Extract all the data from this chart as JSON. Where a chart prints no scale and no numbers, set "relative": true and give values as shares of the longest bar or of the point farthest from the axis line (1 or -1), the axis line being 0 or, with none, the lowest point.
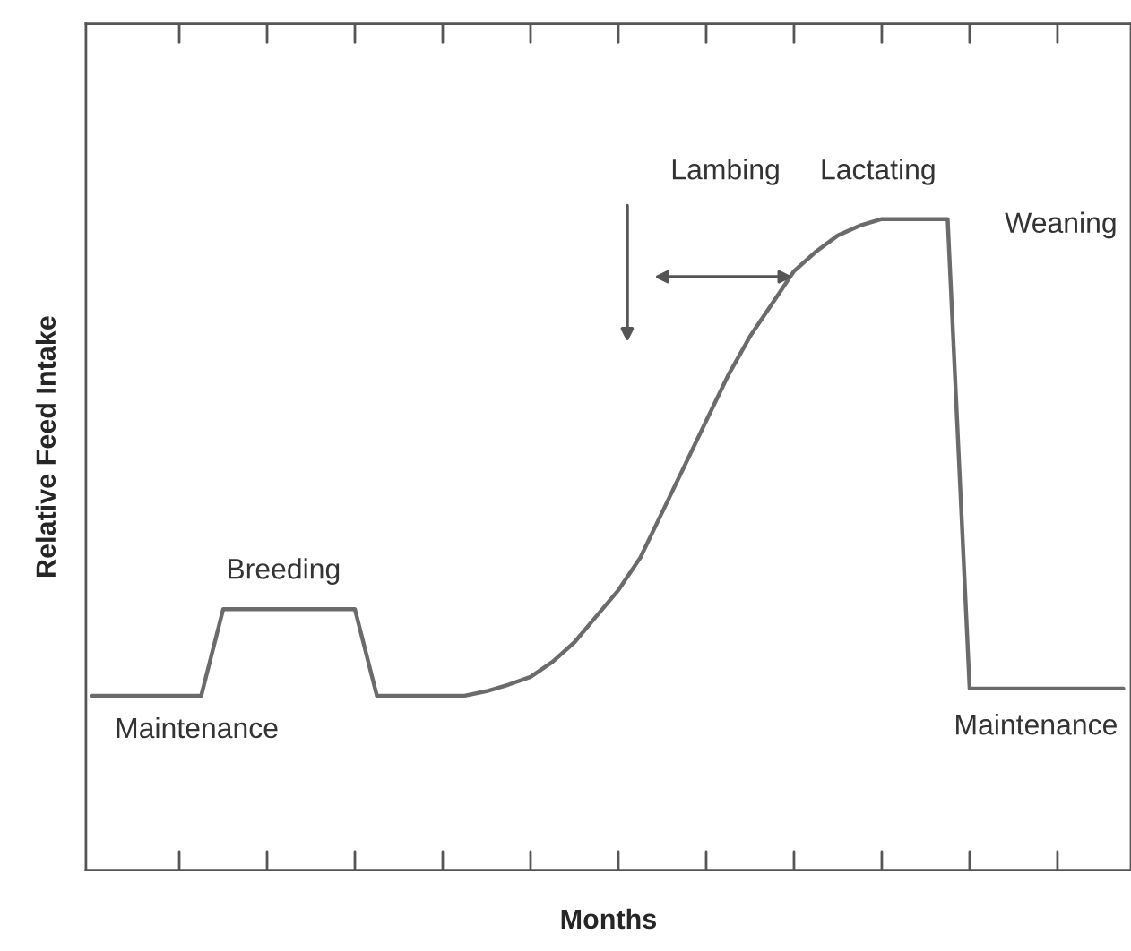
{
  "chart_data": {
    "type": "line",
    "relative": true,
    "xlabel": "Months",
    "ylabel": "Relative Feed Intake",
    "categories": [
      null,
      null,
      null,
      null,
      null,
      null,
      null,
      null,
      null,
      null,
      null,
      null,
      null,
      null,
      null,
      null,
      null,
      null,
      null,
      null,
      null,
      null,
      null,
      null,
      null,
      null,
      null,
      null,
      null,
      null,
      null,
      null,
      null,
      null,
      null,
      null,
      null,
      null,
      null,
      null,
      null,
      null,
      null,
      null,
      null,
      null,
      null,
      null
    ],
    "series": [
      {
        "color": "#6b6b6b",
        "values": [
          0.268,
          0.268,
          0.268,
          0.268,
          0.268,
          0.268,
          0.401,
          0.401,
          0.401,
          0.401,
          0.401,
          0.401,
          0.401,
          0.268,
          0.268,
          0.268,
          0.268,
          0.268,
          0.275,
          0.285,
          0.297,
          0.32,
          0.35,
          0.39,
          0.43,
          0.48,
          0.55,
          0.62,
          0.69,
          0.76,
          0.82,
          0.87,
          0.92,
          0.95,
          0.975,
          0.99,
          1.0,
          1.0,
          1.0,
          1.0,
          0.279,
          0.279,
          0.279,
          0.279,
          0.279,
          0.279,
          0.279,
          0.279
        ]
      }
    ],
    "annotations": [
      "Maintenance",
      "Breeding",
      "Lambing",
      "Lactating",
      "Weaning",
      "Maintenance"
    ],
    "grid": false,
    "legend": false,
    "marker": "none",
    "line_style": "solid"
  }
}
